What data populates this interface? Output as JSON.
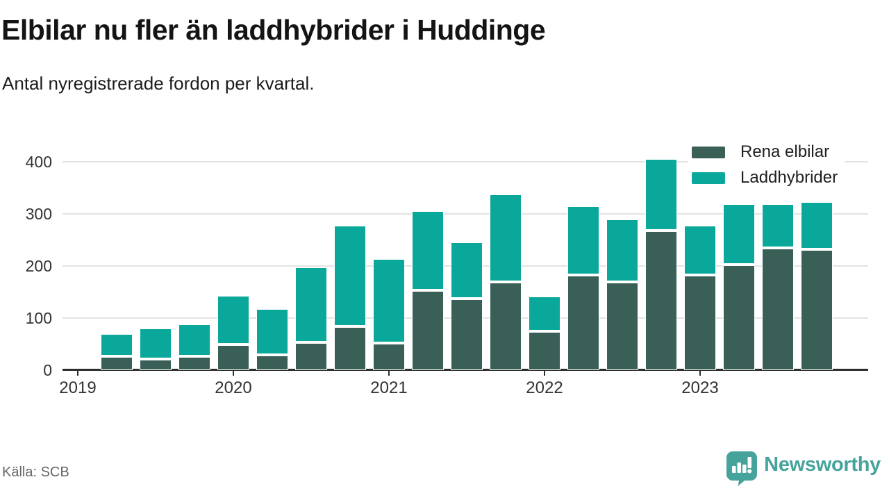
{
  "header": {
    "title": "Elbilar nu fler än laddhybrider i Huddinge",
    "subtitle": "Antal nyregistrerade fordon per kvartal."
  },
  "colors": {
    "elbilar": "#3a5f57",
    "laddhybrider": "#0aa89a",
    "brand": "#46a39c",
    "axis": "#2d2d2d",
    "grid": "#e3e3e3"
  },
  "legend": {
    "items": [
      {
        "label": "Rena elbilar",
        "color_key": "elbilar"
      },
      {
        "label": "Laddhybrider",
        "color_key": "laddhybrider"
      }
    ]
  },
  "footer": {
    "source": "Källa: SCB",
    "brand_name": "Newsworthy"
  },
  "chart_data": {
    "type": "bar",
    "stacked": true,
    "title": "Elbilar nu fler än laddhybrider i Huddinge",
    "subtitle": "Antal nyregistrerade fordon per kvartal.",
    "x": [
      "2019-Q2",
      "2019-Q3",
      "2019-Q4",
      "2020-Q1",
      "2020-Q2",
      "2020-Q3",
      "2020-Q4",
      "2021-Q1",
      "2021-Q2",
      "2021-Q3",
      "2021-Q4",
      "2022-Q1",
      "2022-Q2",
      "2022-Q3",
      "2022-Q4",
      "2023-Q1",
      "2023-Q2",
      "2023-Q3",
      "2023-Q4"
    ],
    "series": [
      {
        "name": "Rena elbilar",
        "color_key": "elbilar",
        "values": [
          25,
          20,
          25,
          48,
          28,
          52,
          83,
          51,
          152,
          136,
          168,
          74,
          182,
          168,
          267,
          181,
          201,
          233,
          231
        ]
      },
      {
        "name": "Laddhybrider",
        "color_key": "laddhybrider",
        "values": [
          45,
          60,
          63,
          95,
          89,
          146,
          194,
          162,
          154,
          109,
          170,
          68,
          133,
          122,
          139,
          97,
          118,
          86,
          92
        ]
      }
    ],
    "y_ticks": [
      0,
      100,
      200,
      300,
      400
    ],
    "x_tick_labels": [
      {
        "label": "2019",
        "index": -1
      },
      {
        "label": "2020",
        "index": 3
      },
      {
        "label": "2021",
        "index": 7
      },
      {
        "label": "2022",
        "index": 11
      },
      {
        "label": "2023",
        "index": 15
      }
    ],
    "ylim": [
      0,
      444
    ],
    "grid": "horizontal",
    "legend_position": "top-right"
  }
}
